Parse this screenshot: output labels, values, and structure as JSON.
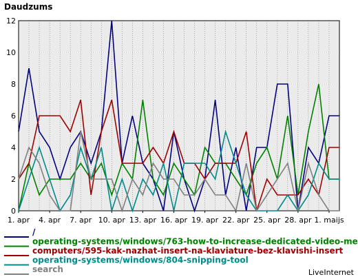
{
  "chart_data": {
    "type": "line",
    "title": "Daudzums",
    "xlabel": "",
    "ylabel": "",
    "ylim": [
      0,
      12
    ],
    "yticks": [
      0,
      2,
      4,
      6,
      8,
      10,
      12
    ],
    "x_tick_labels": [
      "1. apr",
      "4. apr",
      "7. apr",
      "10. apr",
      "13. apr",
      "16. apr",
      "19. apr",
      "22. apr",
      "25. apr",
      "28. apr",
      "1. maijs"
    ],
    "grid": true,
    "legend_position": "bottom",
    "categories": [
      "1. apr",
      "2. apr",
      "3. apr",
      "4. apr",
      "5. apr",
      "6. apr",
      "7. apr",
      "8. apr",
      "9. apr",
      "10. apr",
      "11. apr",
      "12. apr",
      "13. apr",
      "14. apr",
      "15. apr",
      "16. apr",
      "17. apr",
      "18. apr",
      "19. apr",
      "20. apr",
      "21. apr",
      "22. apr",
      "23. apr",
      "24. apr",
      "25. apr",
      "26. apr",
      "27. apr",
      "28. apr",
      "29. apr",
      "30. apr",
      "1. maijs",
      "2. maijs"
    ],
    "series": [
      {
        "name": "/",
        "color": "#000080",
        "values": [
          5,
          9,
          5,
          4,
          2,
          4,
          5,
          3,
          5,
          12,
          3,
          6,
          3,
          2,
          0,
          5,
          2,
          0,
          2,
          7,
          1,
          4,
          0,
          4,
          4,
          8,
          8,
          0,
          4,
          3,
          6,
          6
        ]
      },
      {
        "name": "operating-systems/windows/763-how-to-increase-dedicated-video-memory",
        "color": "#008000",
        "values": [
          0,
          3,
          1,
          2,
          2,
          2,
          3,
          2,
          3,
          1,
          3,
          2,
          7,
          2,
          1,
          3,
          2,
          1,
          4,
          3,
          3,
          2,
          1,
          3,
          4,
          2,
          6,
          1,
          5,
          8,
          2,
          2
        ]
      },
      {
        "name": "computers/595-kak-nazhat-insert-na-klaviature-bez-klavishi-insert",
        "color": "#a00000",
        "values": [
          2,
          3,
          6,
          6,
          6,
          5,
          7,
          1,
          5,
          7,
          3,
          3,
          3,
          4,
          3,
          5,
          3,
          3,
          2,
          3,
          3,
          3,
          5,
          0,
          2,
          1,
          1,
          1,
          2,
          1,
          4,
          4
        ]
      },
      {
        "name": "operating-systems/windows/804-snipping-tool",
        "color": "#008b8b",
        "values": [
          0,
          2,
          4,
          2,
          0,
          1,
          4,
          2,
          4,
          0,
          2,
          0,
          2,
          1,
          3,
          0,
          3,
          3,
          3,
          2,
          5,
          3,
          1,
          0,
          0,
          0,
          1,
          0,
          1,
          3,
          2,
          2
        ]
      },
      {
        "name": "search",
        "color": "#808080",
        "values": [
          2,
          4,
          3,
          1,
          0,
          0,
          5,
          2,
          2,
          2,
          0,
          2,
          1,
          3,
          2,
          2,
          1,
          1,
          2,
          1,
          1,
          0,
          3,
          0,
          1,
          2,
          3,
          0,
          3,
          1,
          0,
          0
        ]
      }
    ]
  },
  "credit": "LiveInternet"
}
